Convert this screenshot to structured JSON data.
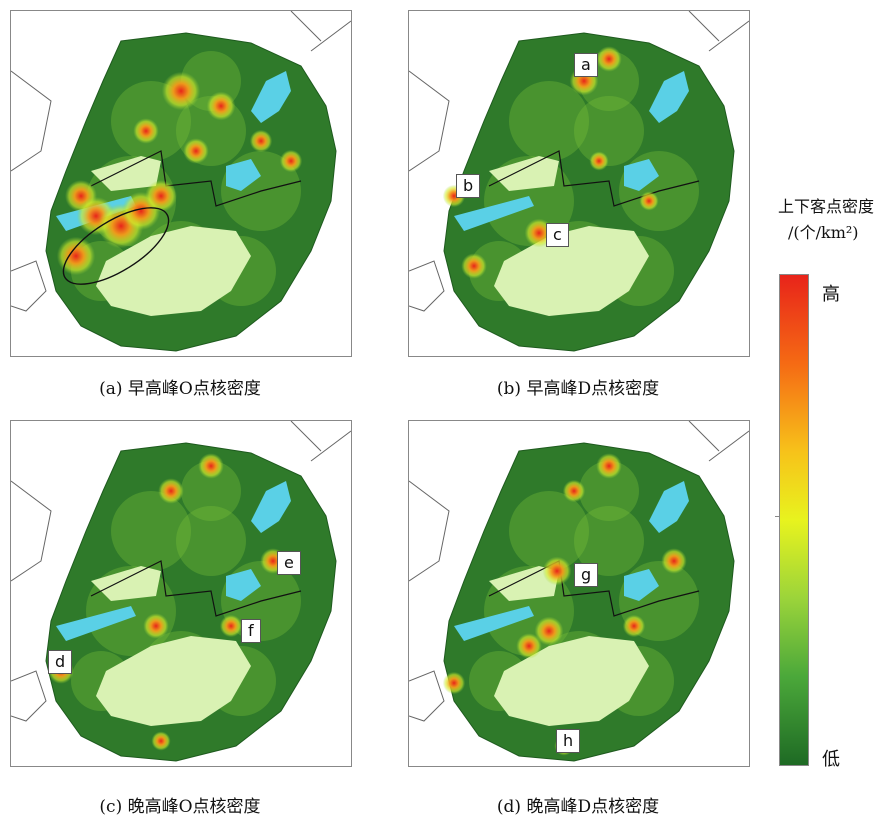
{
  "panels": [
    {
      "id": "a",
      "caption": "(a) 早高峰O点核密度",
      "markers": []
    },
    {
      "id": "b",
      "caption": "(b) 早高峰D点核密度",
      "markers": [
        "a",
        "b",
        "c"
      ]
    },
    {
      "id": "c",
      "caption": "(c) 晚高峰O点核密度",
      "markers": [
        "d",
        "e",
        "f"
      ]
    },
    {
      "id": "d",
      "caption": "(d) 晚高峰D点核密度",
      "markers": [
        "g",
        "h"
      ]
    }
  ],
  "legend": {
    "title_line1": "上下客点密度",
    "title_line2": "/(个/km²)",
    "high": "高",
    "low": "低",
    "colors": [
      "#e8241a",
      "#f56a14",
      "#f7c21a",
      "#e8f31e",
      "#9bd43a",
      "#4ba83a",
      "#1e6a24"
    ]
  },
  "colors": {
    "water": "#5ad0e6",
    "park": "#d9f2b3",
    "land": "#2f7a2a",
    "background": "#ffffff"
  }
}
